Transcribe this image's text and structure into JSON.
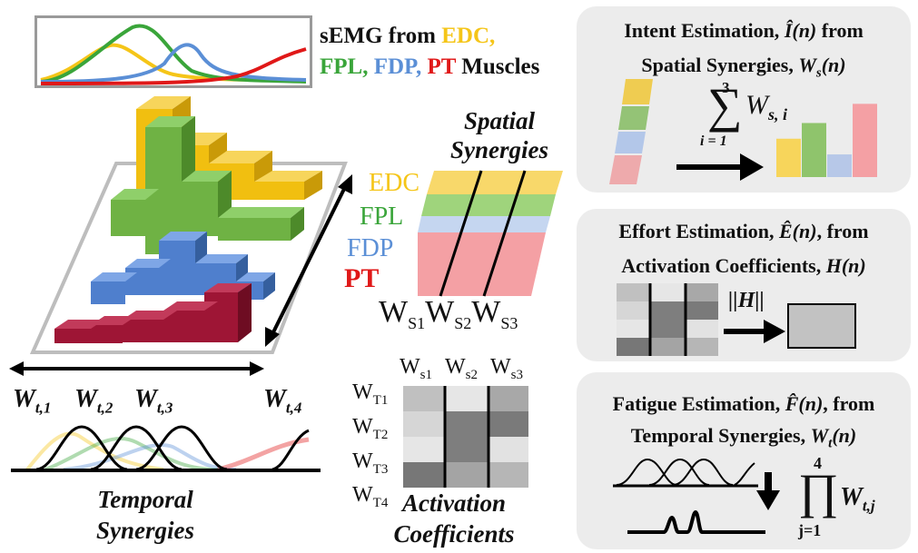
{
  "semg": {
    "prefix": "sEMG from ",
    "edc": "EDC,",
    "fpl": "FPL,",
    "fdp": "FDP,",
    "pt": "PT",
    "suffix": " Muscles",
    "colors": {
      "edc": "#f5c518",
      "fpl": "#3aa53a",
      "fdp": "#5b8fd6",
      "pt": "#e01818"
    }
  },
  "temporal": {
    "labels": [
      "W",
      "W",
      "W",
      "W"
    ],
    "subs": [
      "t,1",
      "t,2",
      "t,3",
      "t,4"
    ],
    "caption_line1": "Temporal",
    "caption_line2": "Synergies"
  },
  "spatial": {
    "title_line1": "Spatial",
    "title_line2": "Synergies",
    "muscles": [
      "EDC",
      "FPL",
      "FDP",
      "PT"
    ],
    "ws_letter": "W",
    "ws_subs": [
      "S1",
      "S2",
      "S3"
    ]
  },
  "activation": {
    "col_subs": [
      "s1",
      "s2",
      "s3"
    ],
    "row_subs": [
      "T1",
      "T2",
      "T3",
      "T4"
    ],
    "letter": "W",
    "caption_line1": "Activation",
    "caption_line2": "Coefficients",
    "grays": [
      [
        "#c0c0c0",
        "#e6e6e6",
        "#a8a8a8"
      ],
      [
        "#d6d6d6",
        "#7e7e7e",
        "#7a7a7a"
      ],
      [
        "#e6e6e6",
        "#7e7e7e",
        "#e2e2e2"
      ],
      [
        "#777777",
        "#a4a4a4",
        "#b6b6b6"
      ]
    ]
  },
  "intent": {
    "line1_text": "Intent Estimation, ",
    "line1_sym": "Î(n)",
    "line1_after": " from",
    "line2_text": "Spatial Synergies, ",
    "line2_sym": "W",
    "line2_sub": "s",
    "line2_arg": "(n)",
    "sum_top": "3",
    "sum_bottom": "i = 1",
    "sum_term": "W",
    "sum_sub": "s, i",
    "bars": [
      0.44,
      0.62,
      0.26,
      0.84
    ]
  },
  "effort": {
    "line1_text": "Effort Estimation, ",
    "line1_sym": "Ê(n)",
    "line1_after": ", from",
    "line2_text": "Activation Coefficients, ",
    "line2_sym": "H",
    "line2_arg": "(n)",
    "norm_label": "||H||"
  },
  "fatigue": {
    "line1_text": "Fatigue Estimation, ",
    "line1_sym": "F̂(n)",
    "line1_after": ", from",
    "line2_text": "Temporal Synergies, ",
    "line2_sym": "W",
    "line2_sub": "t",
    "line2_arg": "(n)",
    "prod_top": "4",
    "prod_bottom": "j=1",
    "prod_term": "W",
    "prod_sub": "t,j"
  }
}
